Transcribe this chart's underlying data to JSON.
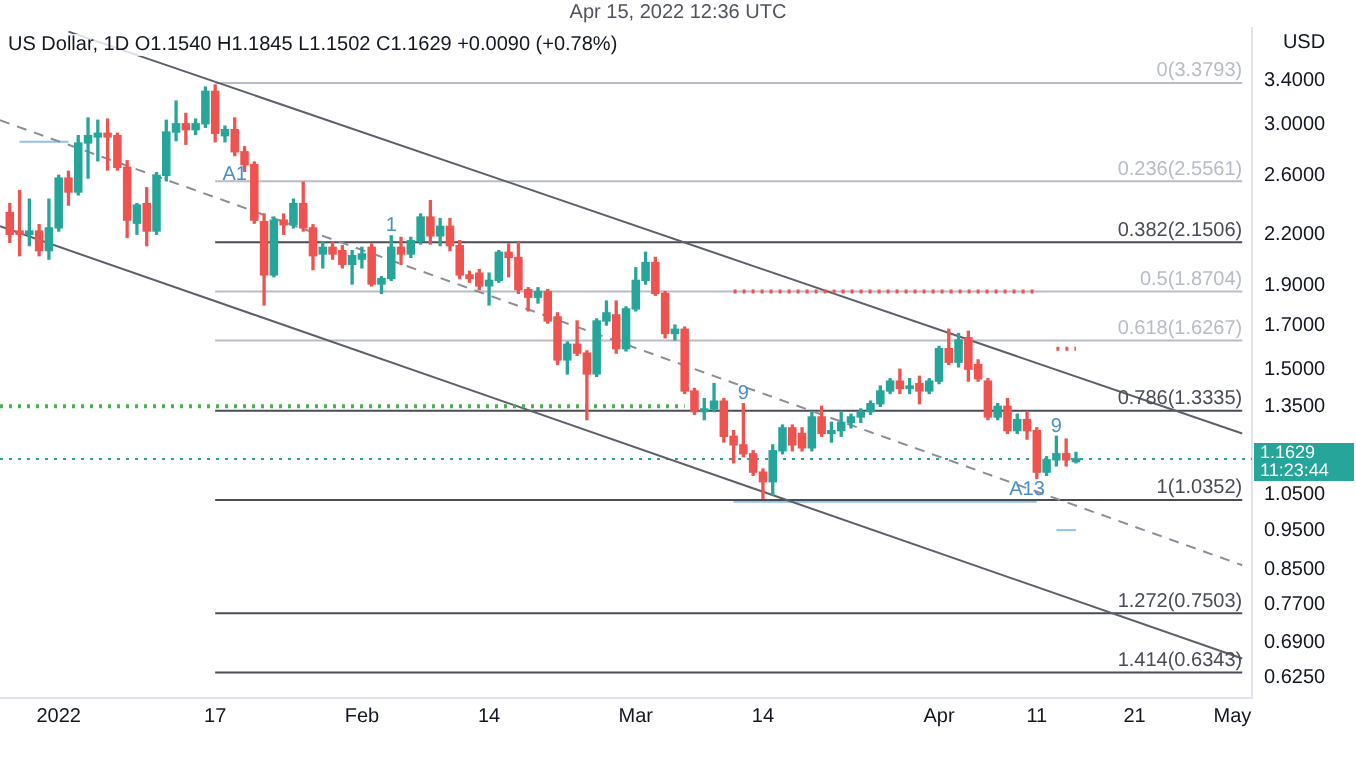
{
  "chart_data": {
    "type": "candlestick",
    "title": "Apr 15, 2022 12:36 UTC",
    "subtitle": "US Dollar, 1D  O1.1540  H1.1845  L1.1502  C1.1629  +0.0090 (+0.78%)",
    "ylabel": "USD",
    "x": [
      "2021-12-27",
      "2021-12-28",
      "2021-12-29",
      "2021-12-30",
      "2021-12-31",
      "2022-01-01",
      "2022-01-02",
      "2022-01-03",
      "2022-01-04",
      "2022-01-05",
      "2022-01-06",
      "2022-01-07",
      "2022-01-08",
      "2022-01-09",
      "2022-01-10",
      "2022-01-11",
      "2022-01-12",
      "2022-01-13",
      "2022-01-14",
      "2022-01-15",
      "2022-01-16",
      "2022-01-17",
      "2022-01-18",
      "2022-01-19",
      "2022-01-20",
      "2022-01-21",
      "2022-01-22",
      "2022-01-23",
      "2022-01-24",
      "2022-01-25",
      "2022-01-26",
      "2022-01-27",
      "2022-01-28",
      "2022-01-29",
      "2022-01-30",
      "2022-01-31",
      "2022-02-01",
      "2022-02-02",
      "2022-02-03",
      "2022-02-04",
      "2022-02-05",
      "2022-02-06",
      "2022-02-07",
      "2022-02-08",
      "2022-02-09",
      "2022-02-10",
      "2022-02-11",
      "2022-02-12",
      "2022-02-13",
      "2022-02-14",
      "2022-02-15",
      "2022-02-16",
      "2022-02-17",
      "2022-02-18",
      "2022-02-19",
      "2022-02-20",
      "2022-02-21",
      "2022-02-22",
      "2022-02-23",
      "2022-02-24",
      "2022-02-25",
      "2022-02-26",
      "2022-02-27",
      "2022-02-28",
      "2022-03-01",
      "2022-03-02",
      "2022-03-03",
      "2022-03-04",
      "2022-03-05",
      "2022-03-06",
      "2022-03-07",
      "2022-03-08",
      "2022-03-09",
      "2022-03-10",
      "2022-03-11",
      "2022-03-12",
      "2022-03-13",
      "2022-03-14",
      "2022-03-15",
      "2022-03-16",
      "2022-03-17",
      "2022-03-18",
      "2022-03-19",
      "2022-03-20",
      "2022-03-21",
      "2022-03-22",
      "2022-03-23",
      "2022-03-24",
      "2022-03-25",
      "2022-03-26",
      "2022-03-27",
      "2022-03-28",
      "2022-03-29",
      "2022-03-30",
      "2022-03-31",
      "2022-04-01",
      "2022-04-02",
      "2022-04-03",
      "2022-04-04",
      "2022-04-05",
      "2022-04-06",
      "2022-04-07",
      "2022-04-08",
      "2022-04-09",
      "2022-04-10",
      "2022-04-11",
      "2022-04-12",
      "2022-04-13",
      "2022-04-14",
      "2022-04-15"
    ],
    "ohlc": [
      [
        2.34,
        2.4,
        2.15,
        2.2
      ],
      [
        2.22,
        2.49,
        2.07,
        2.2
      ],
      [
        2.2,
        2.43,
        2.13,
        2.22
      ],
      [
        2.22,
        2.26,
        2.07,
        2.1
      ],
      [
        2.1,
        2.43,
        2.05,
        2.24
      ],
      [
        2.24,
        2.6,
        2.22,
        2.58
      ],
      [
        2.58,
        2.63,
        2.39,
        2.48
      ],
      [
        2.48,
        2.91,
        2.46,
        2.85
      ],
      [
        2.85,
        3.06,
        2.58,
        2.91
      ],
      [
        2.9,
        3.04,
        2.71,
        2.93
      ],
      [
        2.93,
        3.05,
        2.64,
        2.9
      ],
      [
        2.91,
        2.93,
        2.64,
        2.66
      ],
      [
        2.66,
        2.71,
        2.18,
        2.29
      ],
      [
        2.27,
        2.4,
        2.2,
        2.39
      ],
      [
        2.4,
        2.51,
        2.13,
        2.22
      ],
      [
        2.22,
        2.62,
        2.2,
        2.6
      ],
      [
        2.6,
        3.04,
        2.56,
        2.94
      ],
      [
        2.94,
        3.21,
        2.87,
        3.01
      ],
      [
        3.01,
        3.1,
        2.84,
        2.96
      ],
      [
        2.96,
        3.05,
        2.92,
        3.01
      ],
      [
        3.01,
        3.34,
        2.98,
        3.3
      ],
      [
        3.3,
        3.36,
        2.86,
        2.93
      ],
      [
        2.91,
        2.99,
        2.86,
        2.96
      ],
      [
        2.96,
        3.06,
        2.75,
        2.78
      ],
      [
        2.78,
        2.82,
        2.63,
        2.68
      ],
      [
        2.68,
        2.7,
        2.27,
        2.29
      ],
      [
        2.28,
        2.33,
        1.8,
        1.96
      ],
      [
        1.96,
        2.31,
        1.95,
        2.29
      ],
      [
        2.29,
        2.33,
        2.2,
        2.26
      ],
      [
        2.26,
        2.43,
        2.24,
        2.4
      ],
      [
        2.4,
        2.55,
        2.22,
        2.24
      ],
      [
        2.24,
        2.26,
        1.99,
        2.07
      ],
      [
        2.08,
        2.15,
        2.0,
        2.12
      ],
      [
        2.12,
        2.15,
        2.05,
        2.08
      ],
      [
        2.1,
        2.13,
        2.0,
        2.02
      ],
      [
        2.02,
        2.1,
        1.91,
        2.07
      ],
      [
        2.05,
        2.12,
        2.0,
        2.08
      ],
      [
        2.12,
        2.14,
        1.9,
        1.91
      ],
      [
        1.91,
        1.95,
        1.86,
        1.94
      ],
      [
        1.94,
        2.19,
        1.93,
        2.12
      ],
      [
        2.12,
        2.18,
        2.02,
        2.08
      ],
      [
        2.08,
        2.18,
        2.06,
        2.16
      ],
      [
        2.16,
        2.33,
        2.14,
        2.31
      ],
      [
        2.31,
        2.42,
        2.14,
        2.19
      ],
      [
        2.19,
        2.3,
        2.13,
        2.25
      ],
      [
        2.25,
        2.3,
        2.1,
        2.13
      ],
      [
        2.13,
        2.16,
        1.94,
        1.96
      ],
      [
        1.96,
        1.98,
        1.92,
        1.94
      ],
      [
        1.97,
        1.99,
        1.88,
        1.9
      ],
      [
        1.9,
        1.97,
        1.8,
        1.93
      ],
      [
        1.93,
        2.1,
        1.92,
        2.09
      ],
      [
        2.09,
        2.14,
        1.95,
        2.06
      ],
      [
        2.06,
        2.15,
        1.86,
        1.88
      ],
      [
        1.88,
        1.89,
        1.77,
        1.84
      ],
      [
        1.84,
        1.89,
        1.81,
        1.87
      ],
      [
        1.87,
        1.88,
        1.71,
        1.72
      ],
      [
        1.74,
        1.76,
        1.52,
        1.54
      ],
      [
        1.54,
        1.62,
        1.48,
        1.61
      ],
      [
        1.61,
        1.72,
        1.56,
        1.57
      ],
      [
        1.57,
        1.58,
        1.3,
        1.48
      ],
      [
        1.48,
        1.73,
        1.47,
        1.72
      ],
      [
        1.72,
        1.82,
        1.7,
        1.76
      ],
      [
        1.75,
        1.82,
        1.57,
        1.59
      ],
      [
        1.59,
        1.79,
        1.58,
        1.78
      ],
      [
        1.78,
        2.0,
        1.77,
        1.93
      ],
      [
        1.93,
        2.09,
        1.91,
        2.03
      ],
      [
        2.03,
        2.06,
        1.85,
        1.86
      ],
      [
        1.86,
        1.87,
        1.64,
        1.66
      ],
      [
        1.66,
        1.7,
        1.63,
        1.68
      ],
      [
        1.68,
        1.69,
        1.4,
        1.41
      ],
      [
        1.41,
        1.42,
        1.32,
        1.33
      ],
      [
        1.33,
        1.38,
        1.3,
        1.34
      ],
      [
        1.34,
        1.44,
        1.33,
        1.37
      ],
      [
        1.37,
        1.38,
        1.22,
        1.24
      ],
      [
        1.24,
        1.26,
        1.15,
        1.21
      ],
      [
        1.21,
        1.36,
        1.17,
        1.18
      ],
      [
        1.18,
        1.19,
        1.11,
        1.12
      ],
      [
        1.12,
        1.13,
        1.04,
        1.09
      ],
      [
        1.09,
        1.21,
        1.05,
        1.19
      ],
      [
        1.19,
        1.28,
        1.18,
        1.27
      ],
      [
        1.27,
        1.28,
        1.19,
        1.21
      ],
      [
        1.25,
        1.27,
        1.19,
        1.2
      ],
      [
        1.2,
        1.33,
        1.19,
        1.31
      ],
      [
        1.31,
        1.35,
        1.24,
        1.25
      ],
      [
        1.25,
        1.29,
        1.22,
        1.26
      ],
      [
        1.26,
        1.33,
        1.24,
        1.29
      ],
      [
        1.29,
        1.32,
        1.27,
        1.31
      ],
      [
        1.31,
        1.34,
        1.29,
        1.33
      ],
      [
        1.33,
        1.37,
        1.32,
        1.36
      ],
      [
        1.36,
        1.43,
        1.35,
        1.41
      ],
      [
        1.41,
        1.46,
        1.4,
        1.45
      ],
      [
        1.45,
        1.5,
        1.4,
        1.42
      ],
      [
        1.42,
        1.46,
        1.4,
        1.43
      ],
      [
        1.44,
        1.47,
        1.36,
        1.41
      ],
      [
        1.41,
        1.46,
        1.4,
        1.45
      ],
      [
        1.45,
        1.6,
        1.44,
        1.59
      ],
      [
        1.59,
        1.68,
        1.52,
        1.53
      ],
      [
        1.53,
        1.66,
        1.51,
        1.63
      ],
      [
        1.64,
        1.67,
        1.45,
        1.5
      ],
      [
        1.52,
        1.54,
        1.45,
        1.46
      ],
      [
        1.45,
        1.46,
        1.3,
        1.31
      ],
      [
        1.31,
        1.36,
        1.3,
        1.35
      ],
      [
        1.35,
        1.38,
        1.25,
        1.26
      ],
      [
        1.26,
        1.32,
        1.25,
        1.3
      ],
      [
        1.3,
        1.33,
        1.23,
        1.26
      ],
      [
        1.26,
        1.27,
        1.1,
        1.12
      ],
      [
        1.12,
        1.17,
        1.11,
        1.16
      ],
      [
        1.16,
        1.24,
        1.14,
        1.18
      ],
      [
        1.18,
        1.23,
        1.14,
        1.16
      ],
      [
        1.154,
        1.1845,
        1.1502,
        1.1629
      ]
    ],
    "colors": [
      "#ef5350",
      "#ef5350",
      "#26a69a",
      "#ef5350",
      "#26a69a",
      "#26a69a",
      "#ef5350",
      "#26a69a",
      "#26a69a",
      "#26a69a",
      "#ef5350",
      "#ef5350",
      "#ef5350",
      "#26a69a",
      "#ef5350",
      "#26a69a",
      "#26a69a",
      "#26a69a",
      "#ef5350",
      "#26a69a",
      "#26a69a",
      "#ef5350",
      "#26a69a",
      "#ef5350",
      "#ef5350",
      "#ef5350",
      "#ef5350",
      "#26a69a",
      "#ef5350",
      "#26a69a",
      "#ef5350",
      "#ef5350",
      "#26a69a",
      "#ef5350",
      "#ef5350",
      "#26a69a",
      "#26a69a",
      "#ef5350",
      "#26a69a",
      "#26a69a",
      "#ef5350",
      "#26a69a",
      "#26a69a",
      "#ef5350",
      "#26a69a",
      "#ef5350",
      "#ef5350",
      "#ef5350",
      "#ef5350",
      "#26a69a",
      "#26a69a",
      "#ef5350",
      "#ef5350",
      "#ef5350",
      "#26a69a",
      "#ef5350",
      "#ef5350",
      "#26a69a",
      "#ef5350",
      "#ef5350",
      "#26a69a",
      "#26a69a",
      "#ef5350",
      "#26a69a",
      "#26a69a",
      "#26a69a",
      "#ef5350",
      "#ef5350",
      "#26a69a",
      "#ef5350",
      "#ef5350",
      "#26a69a",
      "#26a69a",
      "#ef5350",
      "#ef5350",
      "#ef5350",
      "#ef5350",
      "#ef5350",
      "#26a69a",
      "#26a69a",
      "#ef5350",
      "#ef5350",
      "#26a69a",
      "#ef5350",
      "#26a69a",
      "#26a69a",
      "#26a69a",
      "#26a69a",
      "#26a69a",
      "#26a69a",
      "#26a69a",
      "#ef5350",
      "#26a69a",
      "#ef5350",
      "#26a69a",
      "#26a69a",
      "#ef5350",
      "#26a69a",
      "#ef5350",
      "#ef5350",
      "#ef5350",
      "#26a69a",
      "#ef5350",
      "#26a69a",
      "#ef5350",
      "#ef5350",
      "#26a69a",
      "#26a69a",
      "#ef5350",
      "#26a69a"
    ],
    "series": [
      {
        "type": "line",
        "x": [
          "2022-01-02",
          "2022-05-02"
        ],
        "values": [
          3.91,
          1.25
        ],
        "color": "#5d606b",
        "line_style": "solid"
      },
      {
        "type": "line",
        "x": [
          "2021-12-26",
          "2022-05-02"
        ],
        "values": [
          3.04,
          0.86
        ],
        "color": "#8a8e99",
        "line_style": "dashed"
      },
      {
        "type": "line",
        "x": [
          "2021-12-26",
          "2022-05-02"
        ],
        "values": [
          2.25,
          0.66
        ],
        "color": "#5d606b",
        "line_style": "solid"
      },
      {
        "type": "line",
        "name": "0(3.3793)",
        "x": [
          "2022-01-17",
          "2022-05-02"
        ],
        "values": [
          3.3793,
          3.3793
        ],
        "color": "#b8bcc6",
        "line_style": "solid"
      },
      {
        "type": "line",
        "name": "0.236(2.5561)",
        "x": [
          "2022-01-17",
          "2022-05-02"
        ],
        "values": [
          2.5561,
          2.5561
        ],
        "color": "#b8bcc6",
        "line_style": "solid"
      },
      {
        "type": "line",
        "name": "0.382(2.1506)",
        "x": [
          "2022-01-17",
          "2022-05-02"
        ],
        "values": [
          2.1506,
          2.1506
        ],
        "color": "#4a4d57",
        "line_style": "solid"
      },
      {
        "type": "line",
        "name": "0.5(1.8704)",
        "x": [
          "2022-01-17",
          "2022-05-02"
        ],
        "values": [
          1.8704,
          1.8704
        ],
        "color": "#b8bcc6",
        "line_style": "solid"
      },
      {
        "type": "line",
        "name": "0.618(1.6267)",
        "x": [
          "2022-01-17",
          "2022-05-02"
        ],
        "values": [
          1.6267,
          1.6267
        ],
        "color": "#b8bcc6",
        "line_style": "solid"
      },
      {
        "type": "line",
        "name": "0.786(1.3335)",
        "x": [
          "2022-01-17",
          "2022-05-02"
        ],
        "values": [
          1.3335,
          1.3335
        ],
        "color": "#4a4d57",
        "line_style": "solid"
      },
      {
        "type": "line",
        "name": "1(1.0352)",
        "x": [
          "2022-01-17",
          "2022-05-02"
        ],
        "values": [
          1.0352,
          1.0352
        ],
        "color": "#4a4d57",
        "line_style": "solid"
      },
      {
        "type": "line",
        "name": "1.272(0.7503)",
        "x": [
          "2022-01-17",
          "2022-05-02"
        ],
        "values": [
          0.7503,
          0.7503
        ],
        "color": "#4a4d57",
        "line_style": "solid"
      },
      {
        "type": "line",
        "name": "1.414(0.6343)",
        "x": [
          "2022-01-17",
          "2022-05-02"
        ],
        "values": [
          0.6343,
          0.6343
        ],
        "color": "#4a4d57",
        "line_style": "solid"
      },
      {
        "type": "line",
        "x": [
          "2022-03-11",
          "2022-04-11"
        ],
        "values": [
          1.87,
          1.87
        ],
        "color": "#ef5350",
        "line_style": "dotted"
      },
      {
        "type": "line",
        "x": [
          "2022-04-13",
          "2022-04-15"
        ],
        "values": [
          1.59,
          1.59
        ],
        "color": "#ef5350",
        "line_style": "dotted"
      },
      {
        "type": "line",
        "x": [
          "2021-12-26",
          "2022-03-06"
        ],
        "values": [
          1.35,
          1.35
        ],
        "color": "#4caf50",
        "line_style": "dotted"
      },
      {
        "type": "line",
        "x": [
          "2021-12-28",
          "2022-01-02"
        ],
        "values": [
          2.86,
          2.86
        ],
        "color": "#90bff0",
        "line_style": "solid"
      },
      {
        "type": "line",
        "x": [
          "2022-03-11",
          "2022-04-11"
        ],
        "values": [
          1.03,
          1.03
        ],
        "color": "#90bff0",
        "line_style": "solid"
      },
      {
        "type": "line",
        "x": [
          "2022-04-13",
          "2022-04-15"
        ],
        "values": [
          0.95,
          0.95
        ],
        "color": "#90bff0",
        "line_style": "solid"
      }
    ],
    "ref_lines": [
      {
        "axis": "y",
        "value": 1.1629,
        "label": "1.1629",
        "color": "#26a69a",
        "line_style": "dotted"
      }
    ],
    "annotations": [
      {
        "text": "A1",
        "x": "2022-01-19",
        "y": 2.53
      },
      {
        "text": "1",
        "x": "2022-02-04",
        "y": 2.19
      },
      {
        "text": "9",
        "x": "2022-03-12",
        "y": 1.36
      },
      {
        "text": "9",
        "x": "2022-04-13",
        "y": 1.24
      },
      {
        "text": "A13",
        "x": "2022-04-10",
        "y": 1.0352
      },
      "11:23:44"
    ],
    "xlim": [
      "2021-12-26",
      "2022-05-03"
    ],
    "xticks": [
      {
        "value": "2022-01-01",
        "label": "2022"
      },
      {
        "value": "2022-01-17",
        "label": "17"
      },
      {
        "value": "2022-02-01",
        "label": "Feb"
      },
      {
        "value": "2022-02-14",
        "label": "14"
      },
      {
        "value": "2022-03-01",
        "label": "Mar"
      },
      {
        "value": "2022-03-14",
        "label": "14"
      },
      {
        "value": "2022-04-01",
        "label": "Apr"
      },
      {
        "value": "2022-04-11",
        "label": "11"
      },
      {
        "value": "2022-04-21",
        "label": "21"
      },
      {
        "value": "2022-05-01",
        "label": "May"
      }
    ],
    "ylim": [
      0.59,
      3.95
    ],
    "yticks": [
      {
        "value": 0.625,
        "label": "0.6250"
      },
      {
        "value": 0.69,
        "label": "0.6900"
      },
      {
        "value": 0.77,
        "label": "0.7700"
      },
      {
        "value": 0.85,
        "label": "0.8500"
      },
      {
        "value": 0.95,
        "label": "0.9500"
      },
      {
        "value": 1.05,
        "label": "1.0500"
      },
      {
        "value": 1.35,
        "label": "1.3500"
      },
      {
        "value": 1.5,
        "label": "1.5000"
      },
      {
        "value": 1.7,
        "label": "1.7000"
      },
      {
        "value": 1.9,
        "label": "1.9000"
      },
      {
        "value": 2.2,
        "label": "2.2000"
      },
      {
        "value": 2.6,
        "label": "2.6000"
      },
      {
        "value": 3.0,
        "label": "3.0000"
      },
      {
        "value": 3.4,
        "label": "3.4000"
      }
    ],
    "log": "y",
    "marker": "none"
  }
}
